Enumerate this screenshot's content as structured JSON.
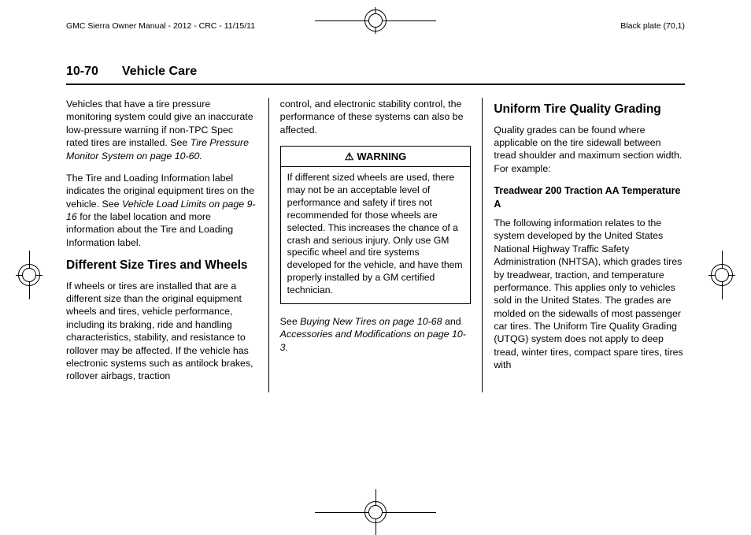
{
  "top": {
    "doc_ref": "GMC Sierra Owner Manual - 2012 - CRC - 11/15/11",
    "plate": "Black plate (70,1)"
  },
  "header": {
    "page_num": "10-70",
    "section": "Vehicle Care"
  },
  "col1": {
    "p1a": "Vehicles that have a tire pressure monitoring system could give an inaccurate low-pressure warning if non-TPC Spec rated tires are installed. See ",
    "p1i": "Tire Pressure Monitor System on page 10-60.",
    "p2a": "The Tire and Loading Information label indicates the original equipment tires on the vehicle. See ",
    "p2i": "Vehicle Load Limits on page 9-16",
    "p2b": " for the label location and more information about the Tire and Loading Information label.",
    "h2": "Different Size Tires and Wheels",
    "p3": "If wheels or tires are installed that are a different size than the original equipment wheels and tires, vehicle performance, including its braking, ride and handling characteristics, stability, and resistance to rollover may be affected. If the vehicle has electronic systems such as antilock brakes, rollover airbags, traction"
  },
  "col2": {
    "p1": "control, and electronic stability control, the performance of these systems can also be affected.",
    "warn_label": "WARNING",
    "warn_body": "If different sized wheels are used, there may not be an acceptable level of performance and safety if tires not recommended for those wheels are selected. This increases the chance of a crash and serious injury. Only use GM specific wheel and tire systems developed for the vehicle, and have them properly installed by a GM certified technician.",
    "p2a": "See ",
    "p2i1": "Buying New Tires on page 10-68",
    "p2m": " and ",
    "p2i2": "Accessories and Modifications on page 10-3.",
    "p2e": ""
  },
  "col3": {
    "h2": "Uniform Tire Quality Grading",
    "p1": "Quality grades can be found where applicable on the tire sidewall between tread shoulder and maximum section width. For example:",
    "h3": "Treadwear 200 Traction AA Temperature A",
    "p2": "The following information relates to the system developed by the United States National Highway Traffic Safety Administration (NHTSA), which grades tires by treadwear, traction, and temperature performance. This applies only to vehicles sold in the United States. The grades are molded on the sidewalls of most passenger car tires. The Uniform Tire Quality Grading (UTQG) system does not apply to deep tread, winter tires, compact spare tires, tires with"
  }
}
